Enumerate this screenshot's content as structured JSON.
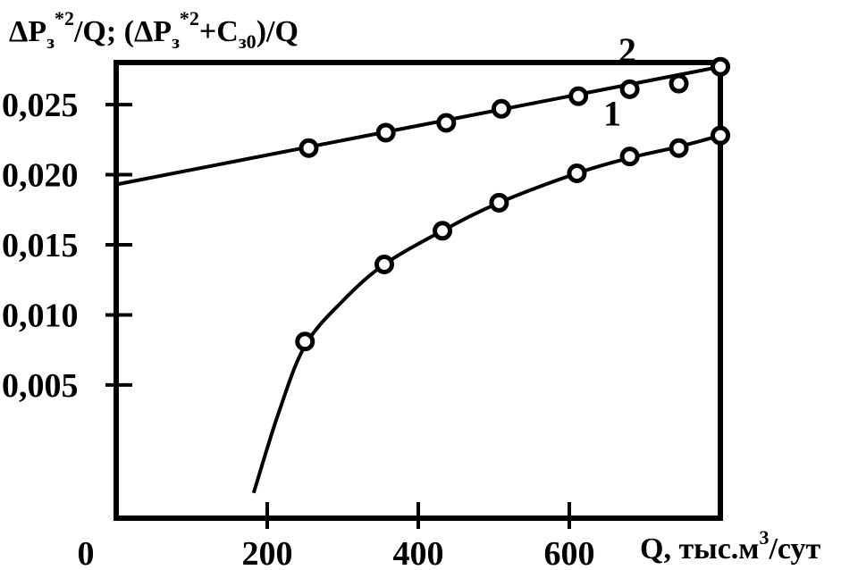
{
  "chart_data": {
    "type": "scatter",
    "title": "",
    "ylabel_parts": {
      "a": "ΔP",
      "a_sub": "з",
      "a_sup": "*2",
      "b": "/Q; (ΔP",
      "b_sub": "з",
      "b_sup": "*2",
      "c": "+C",
      "c_sub": "з0",
      "d": ")/Q"
    },
    "xlabel_parts": {
      "a": "Q, тыс.м",
      "a_sup": "3",
      "b": "/сут"
    },
    "xlim": [
      0,
      800
    ],
    "ylim": [
      -0.0045,
      0.028
    ],
    "x_ticks": [
      {
        "value": 0,
        "label": "0"
      },
      {
        "value": 200,
        "label": "200"
      },
      {
        "value": 400,
        "label": "400"
      },
      {
        "value": 600,
        "label": "600"
      },
      {
        "value": 800,
        "label": ""
      }
    ],
    "y_ticks": [
      {
        "value": 0.005,
        "label": "0,005"
      },
      {
        "value": 0.01,
        "label": "0,010"
      },
      {
        "value": 0.015,
        "label": "0,015"
      },
      {
        "value": 0.02,
        "label": "0,020"
      },
      {
        "value": 0.025,
        "label": "0,025"
      }
    ],
    "grid": false,
    "series": [
      {
        "name": "1",
        "label_at": {
          "x": 645,
          "y": 0.0235
        },
        "points": [
          {
            "x": 250,
            "y": 0.0081
          },
          {
            "x": 355,
            "y": 0.0136
          },
          {
            "x": 432,
            "y": 0.016
          },
          {
            "x": 507,
            "y": 0.018
          },
          {
            "x": 610,
            "y": 0.0201
          },
          {
            "x": 680,
            "y": 0.0213
          },
          {
            "x": 745,
            "y": 0.0219
          },
          {
            "x": 800,
            "y": 0.0228
          }
        ],
        "curve": [
          {
            "x": 182,
            "y": -0.0027
          },
          {
            "x": 215,
            "y": 0.003
          },
          {
            "x": 250,
            "y": 0.0078
          },
          {
            "x": 300,
            "y": 0.011
          },
          {
            "x": 355,
            "y": 0.0136
          },
          {
            "x": 432,
            "y": 0.016
          },
          {
            "x": 507,
            "y": 0.018
          },
          {
            "x": 610,
            "y": 0.0201
          },
          {
            "x": 680,
            "y": 0.0212
          },
          {
            "x": 745,
            "y": 0.022
          },
          {
            "x": 800,
            "y": 0.0228
          }
        ]
      },
      {
        "name": "2",
        "label_at": {
          "x": 665,
          "y": 0.028
        },
        "points": [
          {
            "x": 255,
            "y": 0.0219
          },
          {
            "x": 357,
            "y": 0.023
          },
          {
            "x": 437,
            "y": 0.0237
          },
          {
            "x": 510,
            "y": 0.0247
          },
          {
            "x": 612,
            "y": 0.0256
          },
          {
            "x": 680,
            "y": 0.0261
          },
          {
            "x": 745,
            "y": 0.0265
          },
          {
            "x": 800,
            "y": 0.0277
          }
        ],
        "curve": [
          {
            "x": 0,
            "y": 0.0193
          },
          {
            "x": 800,
            "y": 0.0277
          }
        ]
      }
    ]
  }
}
